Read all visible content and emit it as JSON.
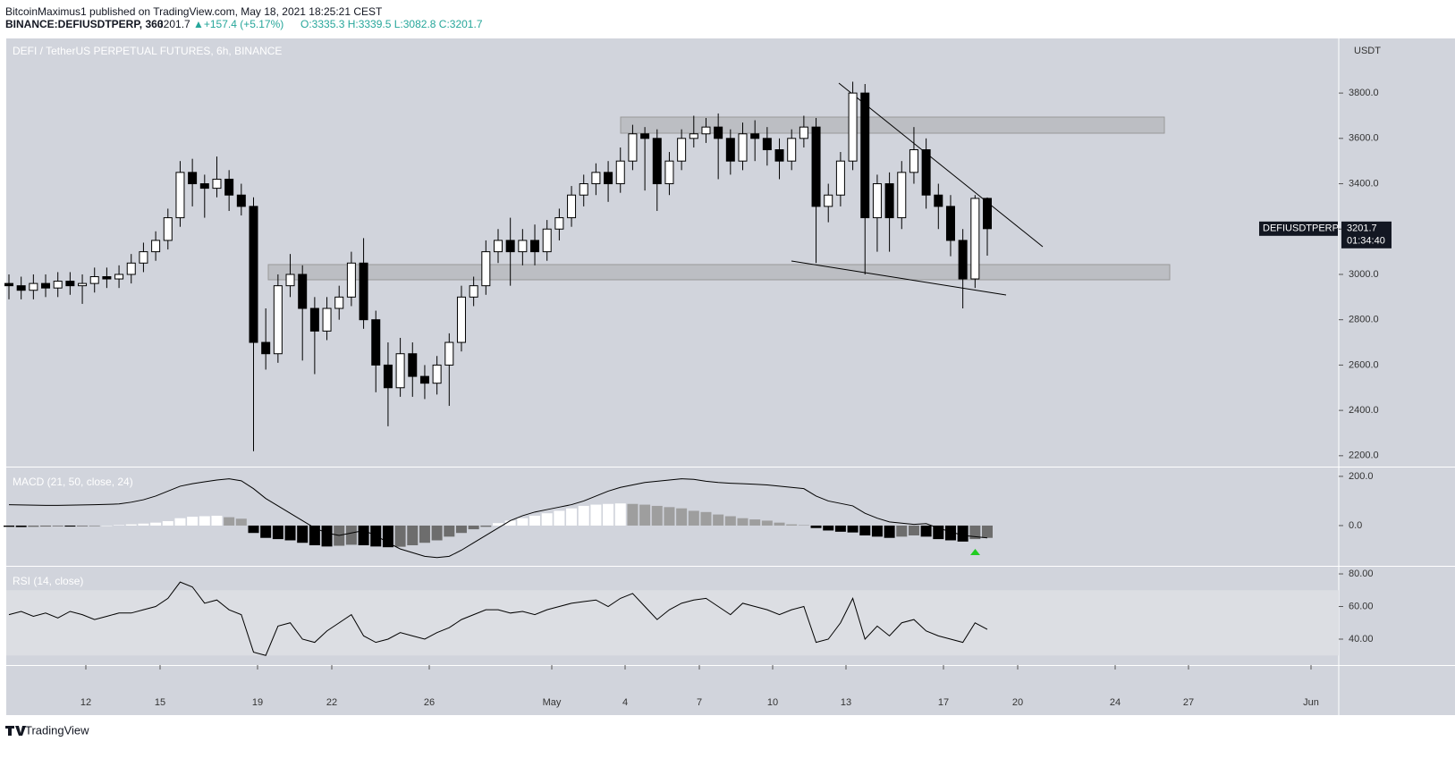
{
  "header": {
    "line1": "BitcoinMaximus1 published on TradingView.com, May 18, 2021 18:25:21 CEST",
    "symbol": "BINANCE:DEFIUSDTPERP, 360",
    "last": "3201.7",
    "change": "▲+157.4 (+5.17%)",
    "ohlc": "O:3335.3 H:3339.5 L:3082.8 C:3201.7"
  },
  "footer": "TradingView",
  "price_tag": {
    "symbol": "DEFIUSDTPERP",
    "price": "3201.7",
    "countdown": "01:34:40"
  },
  "chart_data": {
    "type": "candlestick",
    "title": "DEFI / TetherUS PERPETUAL FUTURES, 6h, BINANCE",
    "unit": "USDT",
    "xticks": [
      "12",
      "15",
      "19",
      "22",
      "26",
      "May",
      "4",
      "7",
      "10",
      "13",
      "17",
      "20",
      "24",
      "27",
      "Jun"
    ],
    "ylim": [
      2152,
      4041
    ],
    "yticks": [
      {
        "value": 2200,
        "label": "2200.0"
      },
      {
        "value": 2400,
        "label": "2400.0"
      },
      {
        "value": 2600,
        "label": "2600.0"
      },
      {
        "value": 2800,
        "label": "2800.0"
      },
      {
        "value": 3000,
        "label": "3000.0"
      },
      {
        "value": 3200,
        "label": "3200.0"
      },
      {
        "value": 3400,
        "label": "3400.0"
      },
      {
        "value": 3600,
        "label": "3600.0"
      },
      {
        "value": 3800,
        "label": "3800.0"
      }
    ],
    "up_color": "#ffffff",
    "down_color": "#000000",
    "candles": [
      [
        2960,
        3000,
        2890,
        2950
      ],
      [
        2950,
        2990,
        2890,
        2930
      ],
      [
        2930,
        3000,
        2890,
        2960
      ],
      [
        2960,
        3000,
        2900,
        2940
      ],
      [
        2940,
        3010,
        2900,
        2970
      ],
      [
        2970,
        3010,
        2910,
        2950
      ],
      [
        2950,
        3000,
        2870,
        2960
      ],
      [
        2960,
        3030,
        2920,
        2990
      ],
      [
        2990,
        3030,
        2940,
        2980
      ],
      [
        2980,
        3040,
        2940,
        3000
      ],
      [
        3000,
        3090,
        2960,
        3050
      ],
      [
        3050,
        3140,
        3010,
        3100
      ],
      [
        3100,
        3190,
        3060,
        3150
      ],
      [
        3150,
        3290,
        3110,
        3250
      ],
      [
        3250,
        3500,
        3210,
        3450
      ],
      [
        3450,
        3510,
        3300,
        3400
      ],
      [
        3400,
        3440,
        3250,
        3380
      ],
      [
        3380,
        3520,
        3340,
        3420
      ],
      [
        3420,
        3460,
        3280,
        3350
      ],
      [
        3350,
        3400,
        3260,
        3300
      ],
      [
        3300,
        3340,
        2220,
        2700
      ],
      [
        2700,
        2850,
        2580,
        2650
      ],
      [
        2650,
        3000,
        2610,
        2950
      ],
      [
        2950,
        3090,
        2900,
        3000
      ],
      [
        3000,
        3040,
        2620,
        2850
      ],
      [
        2850,
        2900,
        2560,
        2750
      ],
      [
        2750,
        2900,
        2710,
        2850
      ],
      [
        2850,
        2950,
        2800,
        2900
      ],
      [
        2900,
        3100,
        2860,
        3050
      ],
      [
        3050,
        3160,
        2760,
        2800
      ],
      [
        2800,
        2840,
        2480,
        2600
      ],
      [
        2600,
        2700,
        2330,
        2500
      ],
      [
        2500,
        2720,
        2460,
        2650
      ],
      [
        2650,
        2700,
        2460,
        2550
      ],
      [
        2550,
        2600,
        2450,
        2520
      ],
      [
        2520,
        2640,
        2470,
        2600
      ],
      [
        2600,
        2740,
        2420,
        2700
      ],
      [
        2700,
        2950,
        2660,
        2900
      ],
      [
        2900,
        2990,
        2860,
        2950
      ],
      [
        2950,
        3150,
        2910,
        3100
      ],
      [
        3100,
        3200,
        3050,
        3150
      ],
      [
        3150,
        3250,
        2950,
        3100
      ],
      [
        3100,
        3200,
        3040,
        3150
      ],
      [
        3150,
        3220,
        3040,
        3100
      ],
      [
        3100,
        3240,
        3060,
        3200
      ],
      [
        3200,
        3290,
        3150,
        3250
      ],
      [
        3250,
        3390,
        3210,
        3350
      ],
      [
        3350,
        3440,
        3300,
        3400
      ],
      [
        3400,
        3490,
        3350,
        3450
      ],
      [
        3450,
        3500,
        3320,
        3400
      ],
      [
        3400,
        3560,
        3360,
        3500
      ],
      [
        3500,
        3660,
        3460,
        3620
      ],
      [
        3620,
        3650,
        3370,
        3600
      ],
      [
        3600,
        3640,
        3280,
        3400
      ],
      [
        3400,
        3540,
        3350,
        3500
      ],
      [
        3500,
        3640,
        3460,
        3600
      ],
      [
        3600,
        3700,
        3560,
        3620
      ],
      [
        3620,
        3690,
        3580,
        3650
      ],
      [
        3650,
        3710,
        3420,
        3600
      ],
      [
        3600,
        3640,
        3440,
        3500
      ],
      [
        3500,
        3670,
        3460,
        3620
      ],
      [
        3620,
        3680,
        3500,
        3600
      ],
      [
        3600,
        3650,
        3480,
        3550
      ],
      [
        3550,
        3600,
        3420,
        3500
      ],
      [
        3500,
        3640,
        3460,
        3600
      ],
      [
        3600,
        3700,
        3560,
        3650
      ],
      [
        3650,
        3690,
        3050,
        3300
      ],
      [
        3300,
        3400,
        3230,
        3350
      ],
      [
        3350,
        3540,
        3300,
        3500
      ],
      [
        3500,
        3850,
        3460,
        3800
      ],
      [
        3800,
        3840,
        3000,
        3250
      ],
      [
        3250,
        3440,
        3100,
        3400
      ],
      [
        3400,
        3450,
        3100,
        3250
      ],
      [
        3250,
        3500,
        3200,
        3450
      ],
      [
        3450,
        3650,
        3400,
        3550
      ],
      [
        3550,
        3600,
        3290,
        3350
      ],
      [
        3350,
        3400,
        3200,
        3300
      ],
      [
        3300,
        3350,
        3080,
        3150
      ],
      [
        3150,
        3200,
        2850,
        2980
      ],
      [
        2980,
        3350,
        2940,
        3335.3
      ],
      [
        3335.3,
        3339.5,
        3082.8,
        3201.7
      ]
    ],
    "macd": {
      "title": "MACD (21, 50, close, 24)",
      "ylim": [
        -163.6,
        236
      ],
      "yticks": [
        {
          "value": 0,
          "label": "0.0"
        },
        {
          "value": 200,
          "label": "200.0"
        }
      ],
      "line_color": "#000000",
      "histogram": [
        -5,
        -6,
        -5,
        -4,
        -3,
        -4,
        -3,
        -2,
        0,
        2,
        5,
        8,
        12,
        18,
        30,
        36,
        38,
        40,
        34,
        28,
        -30,
        -50,
        -55,
        -60,
        -70,
        -80,
        -85,
        -82,
        -78,
        -80,
        -85,
        -88,
        -86,
        -80,
        -70,
        -60,
        -45,
        -30,
        -15,
        -5,
        10,
        20,
        30,
        40,
        50,
        60,
        70,
        80,
        85,
        88,
        90,
        88,
        85,
        80,
        75,
        70,
        60,
        55,
        45,
        38,
        30,
        25,
        20,
        12,
        5,
        2,
        -10,
        -20,
        -25,
        -28,
        -40,
        -45,
        -50,
        -45,
        -40,
        -45,
        -55,
        -60,
        -65,
        -55,
        -50
      ],
      "line": [
        85,
        84,
        83,
        82,
        82,
        83,
        84,
        85,
        86,
        88,
        95,
        105,
        120,
        140,
        160,
        170,
        178,
        185,
        190,
        182,
        150,
        110,
        80,
        50,
        20,
        -10,
        -30,
        -40,
        -30,
        -20,
        -40,
        -70,
        -95,
        -110,
        -125,
        -130,
        -125,
        -100,
        -70,
        -40,
        -10,
        20,
        40,
        55,
        65,
        75,
        85,
        100,
        120,
        140,
        155,
        165,
        175,
        180,
        185,
        190,
        188,
        180,
        175,
        172,
        170,
        168,
        165,
        160,
        155,
        150,
        120,
        100,
        90,
        80,
        50,
        30,
        15,
        10,
        5,
        8,
        -10,
        -25,
        -40,
        -45,
        -50
      ]
    },
    "rsi": {
      "title": "RSI (14, close)",
      "ylim": [
        24.1,
        84.4
      ],
      "yticks": [
        {
          "value": 40,
          "label": "40.00"
        },
        {
          "value": 60,
          "label": "60.00"
        },
        {
          "value": 80,
          "label": "80.00"
        }
      ],
      "band": [
        30,
        70
      ],
      "line_color": "#000000",
      "values": [
        55,
        57,
        54,
        56,
        53,
        57,
        55,
        52,
        54,
        56,
        56,
        58,
        60,
        65,
        75,
        72,
        62,
        64,
        58,
        55,
        32,
        30,
        48,
        50,
        40,
        38,
        45,
        50,
        55,
        42,
        38,
        40,
        44,
        42,
        40,
        44,
        47,
        52,
        55,
        58,
        58,
        56,
        57,
        55,
        58,
        60,
        62,
        63,
        64,
        60,
        65,
        68,
        60,
        52,
        58,
        62,
        64,
        65,
        60,
        55,
        62,
        60,
        58,
        55,
        58,
        60,
        38,
        40,
        50,
        65,
        40,
        48,
        42,
        50,
        52,
        45,
        42,
        40,
        38,
        50,
        46
      ]
    }
  }
}
